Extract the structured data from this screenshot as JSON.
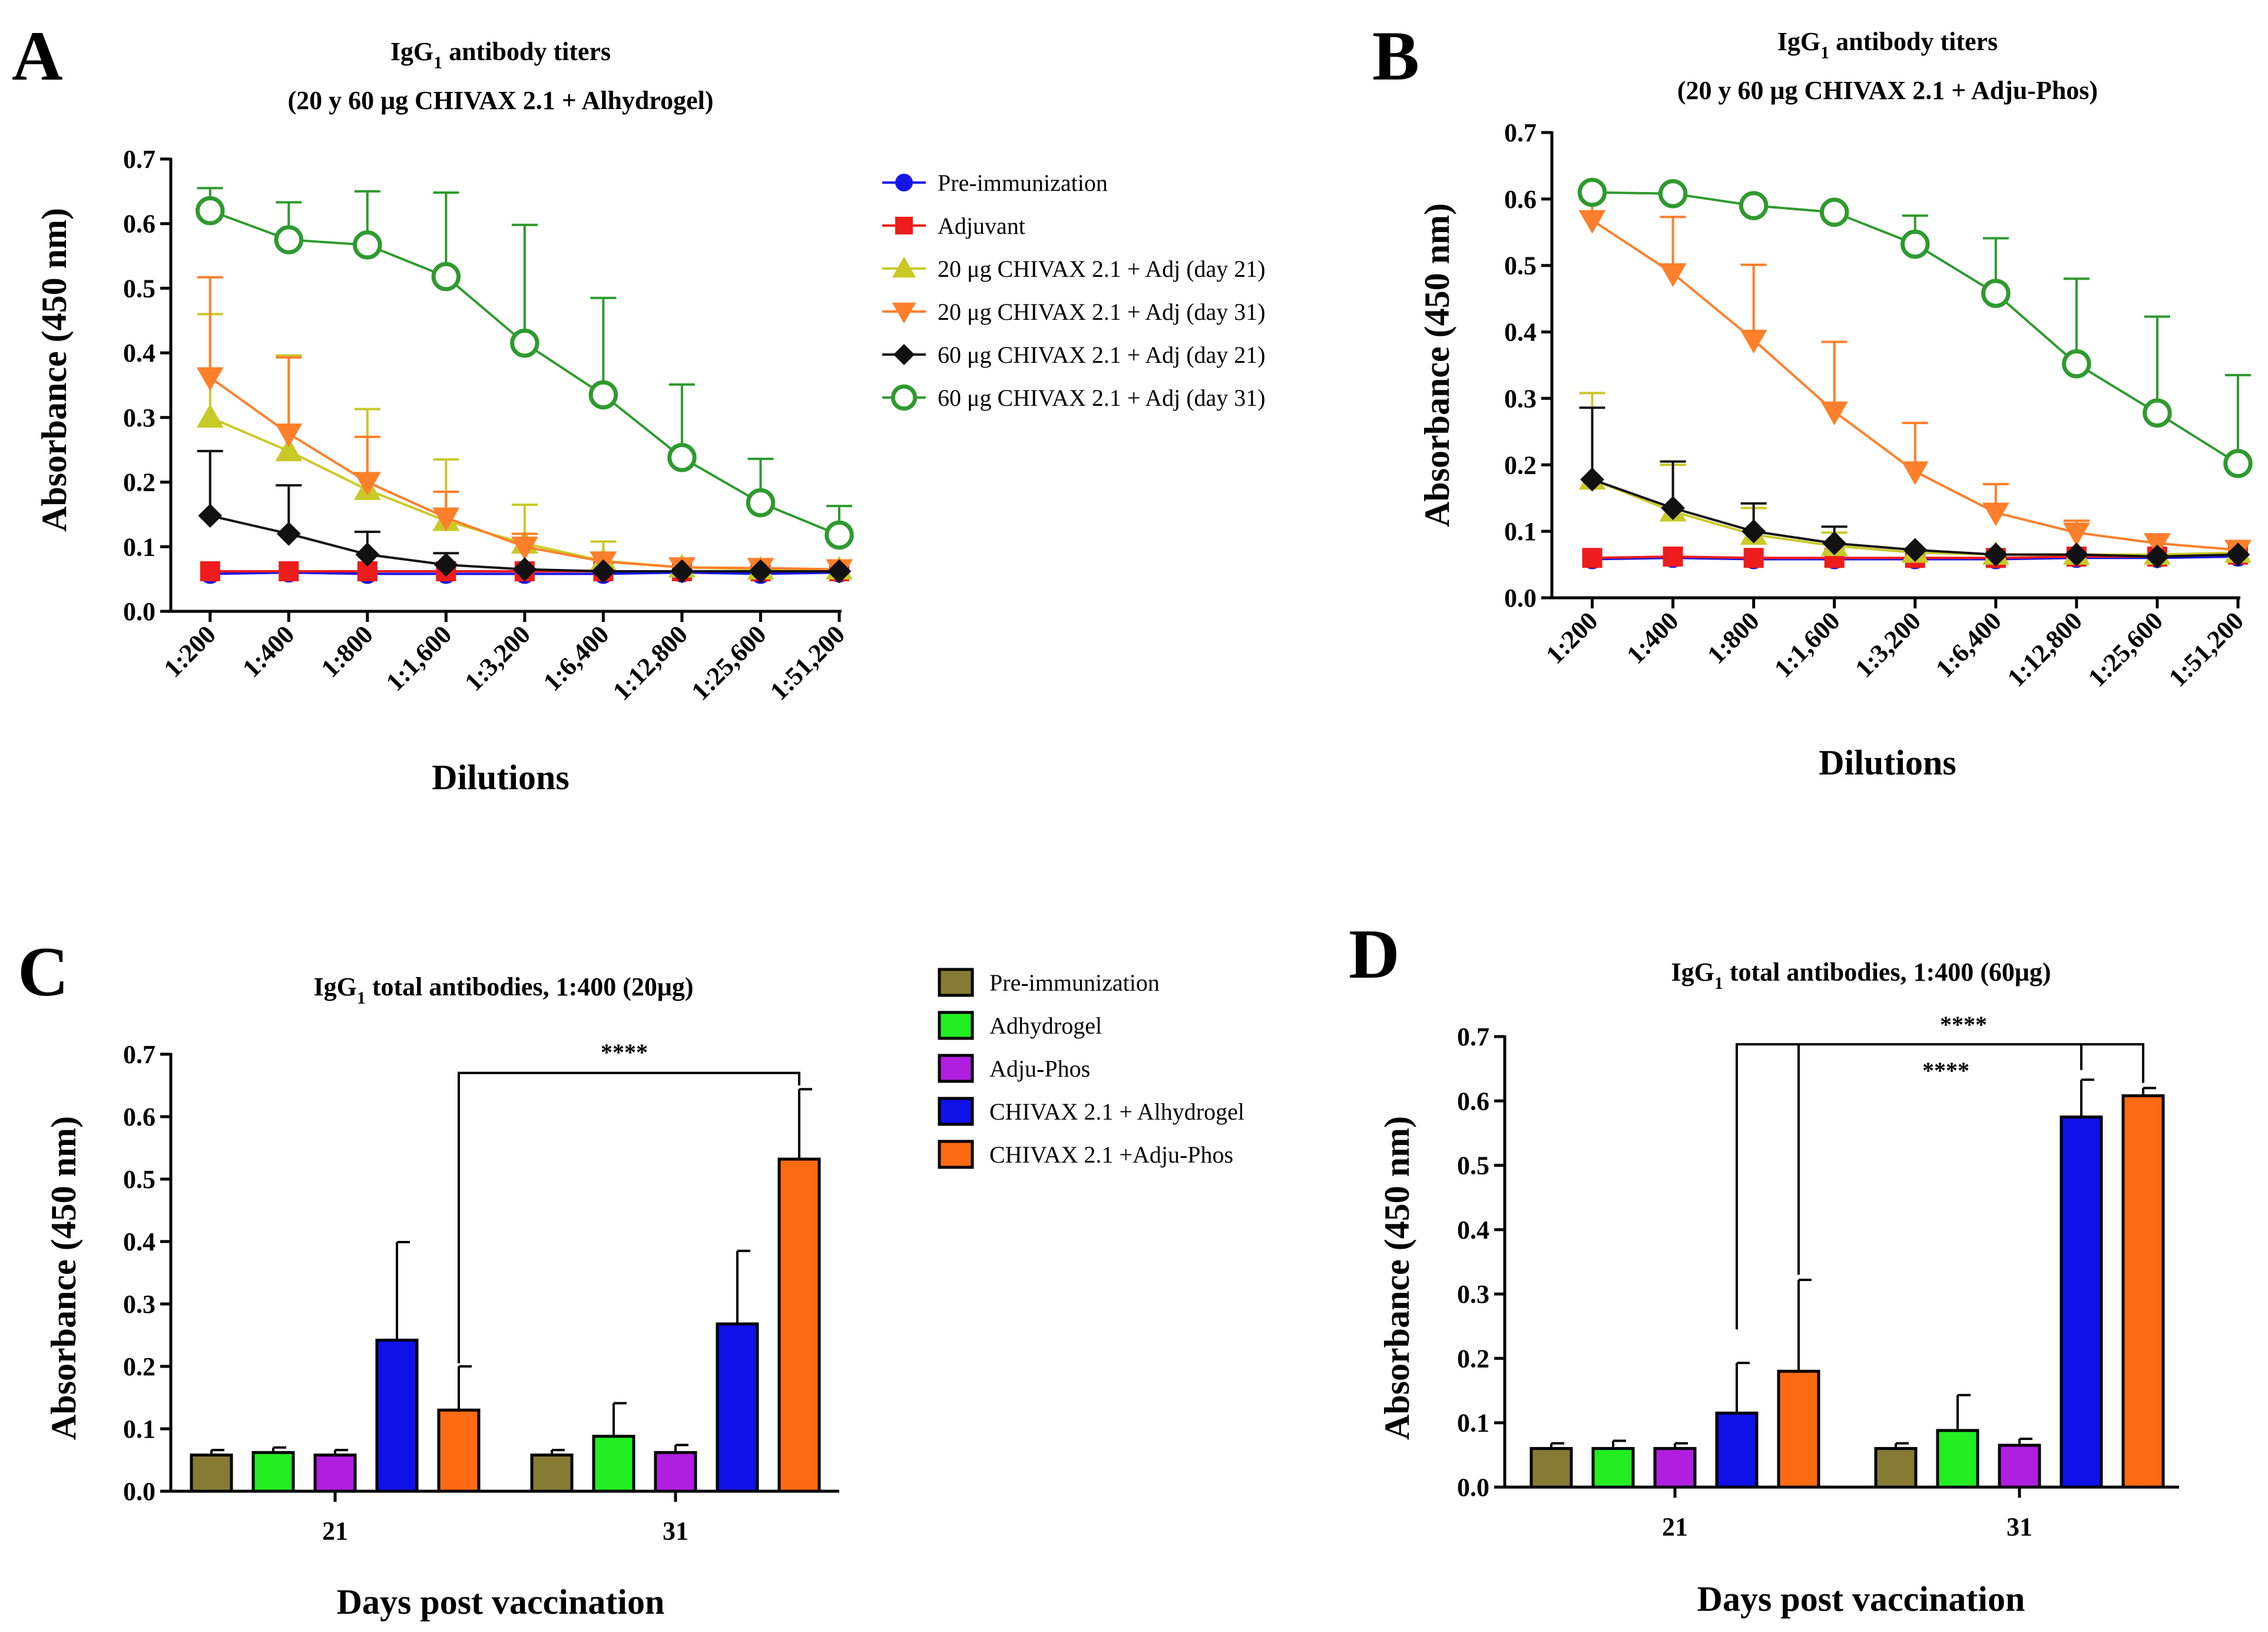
{
  "panel_letters": [
    "A",
    "B",
    "C",
    "D"
  ],
  "legend_line": {
    "entries": [
      "Pre-immunization",
      "Adjuvant",
      "20 μg CHIVAX 2.1 + Adj (day 21)",
      "20 μg CHIVAX 2.1 + Adj (day 31)",
      "60 μg CHIVAX 2.1 + Adj (day 21)",
      "60 μg CHIVAX 2.1 + Adj (day 31)"
    ]
  },
  "legend_bar": {
    "entries": [
      "Pre-immunization",
      "Adhydrogel",
      "Adju-Phos",
      "CHIVAX 2.1 + Alhydrogel",
      "CHIVAX 2.1 +Adju-Phos"
    ]
  },
  "chart_data": [
    {
      "type": "line",
      "panel": "A",
      "title_line1_pre": "IgG",
      "title_line1_sub": "1",
      "title_line1_post": " antibody titers",
      "title_line2": "(20 y 60 μg CHIVAX 2.1 + Alhydrogel)",
      "xlabel": "Dilutions",
      "ylabel": "Absorbance (450 nm)",
      "ylim": [
        0,
        0.7
      ],
      "yticks": [
        "0.0",
        "0.1",
        "0.2",
        "0.3",
        "0.4",
        "0.5",
        "0.6",
        "0.7"
      ],
      "categories": [
        "1:200",
        "1:400",
        "1:800",
        "1:1,600",
        "1:3,200",
        "1:6,400",
        "1:12,800",
        "1:25,600",
        "1:51,200"
      ],
      "legend": "right",
      "series": [
        {
          "name": "Pre-immunization",
          "color": "#1515e6",
          "marker": "circle",
          "values": [
            0.058,
            0.06,
            0.058,
            0.058,
            0.058,
            0.058,
            0.06,
            0.058,
            0.06
          ],
          "errors": [
            0.008,
            0.008,
            0.008,
            0.008,
            0.008,
            0.008,
            0.008,
            0.008,
            0.008
          ]
        },
        {
          "name": "Adjuvant",
          "color": "#ee1c1c",
          "marker": "square",
          "values": [
            0.062,
            0.062,
            0.062,
            0.062,
            0.062,
            0.062,
            0.062,
            0.062,
            0.062
          ],
          "errors": [
            0.008,
            0.008,
            0.008,
            0.008,
            0.008,
            0.008,
            0.008,
            0.008,
            0.008
          ]
        },
        {
          "name": "20 μg CHIVAX 2.1 + Adj (day 21)",
          "color": "#c9c928",
          "marker": "triangle",
          "values": [
            0.3,
            0.248,
            0.188,
            0.14,
            0.105,
            0.078,
            0.068,
            0.065,
            0.065
          ],
          "errors": [
            0.16,
            0.148,
            0.125,
            0.095,
            0.06,
            0.03,
            0.012,
            0.008,
            0.008
          ]
        },
        {
          "name": "20 μg CHIVAX 2.1 + Adj (day 31)",
          "color": "#ff7f2a",
          "marker": "triangle-down",
          "values": [
            0.362,
            0.275,
            0.2,
            0.145,
            0.1,
            0.077,
            0.068,
            0.067,
            0.065
          ],
          "errors": [
            0.155,
            0.118,
            0.07,
            0.04,
            0.02,
            0.012,
            0.008,
            0.008,
            0.008
          ]
        },
        {
          "name": "60 μg CHIVAX 2.1 + Adj (day 21)",
          "color": "#111111",
          "marker": "diamond",
          "values": [
            0.148,
            0.12,
            0.088,
            0.072,
            0.065,
            0.062,
            0.062,
            0.062,
            0.062
          ],
          "errors": [
            0.1,
            0.075,
            0.035,
            0.018,
            0.012,
            0.01,
            0.008,
            0.008,
            0.008
          ]
        },
        {
          "name": "60 μg CHIVAX 2.1 + Adj (day 31)",
          "color": "#2e9a2e",
          "marker": "open-circle",
          "values": [
            0.62,
            0.575,
            0.567,
            0.518,
            0.415,
            0.335,
            0.238,
            0.168,
            0.118
          ],
          "errors": [
            0.035,
            0.058,
            0.083,
            0.13,
            0.183,
            0.15,
            0.113,
            0.068,
            0.045
          ]
        }
      ]
    },
    {
      "type": "line",
      "panel": "B",
      "title_line1_pre": "IgG",
      "title_line1_sub": "1",
      "title_line1_post": " antibody titers",
      "title_line2": "(20 y 60 μg CHIVAX 2.1 + Adju-Phos)",
      "xlabel": "Dilutions",
      "ylabel": "Absorbance (450 nm)",
      "ylim": [
        0,
        0.7
      ],
      "yticks": [
        "0.0",
        "0.1",
        "0.2",
        "0.3",
        "0.4",
        "0.5",
        "0.6",
        "0.7"
      ],
      "categories": [
        "1:200",
        "1:400",
        "1:800",
        "1:1,600",
        "1:3,200",
        "1:6,400",
        "1:12,800",
        "1:25,600",
        "1:51,200"
      ],
      "series": [
        {
          "name": "Pre-immunization",
          "color": "#1515e6",
          "marker": "circle",
          "values": [
            0.058,
            0.06,
            0.058,
            0.058,
            0.058,
            0.058,
            0.06,
            0.06,
            0.062
          ],
          "errors": [
            0.008,
            0.008,
            0.008,
            0.008,
            0.008,
            0.008,
            0.008,
            0.008,
            0.008
          ]
        },
        {
          "name": "Adjuvant",
          "color": "#ee1c1c",
          "marker": "square",
          "values": [
            0.06,
            0.062,
            0.06,
            0.06,
            0.06,
            0.06,
            0.062,
            0.062,
            0.065
          ],
          "errors": [
            0.008,
            0.008,
            0.008,
            0.008,
            0.008,
            0.008,
            0.008,
            0.008,
            0.008
          ]
        },
        {
          "name": "20 μg CHIVAX 2.1 + Adj (day 21)",
          "color": "#c9c928",
          "marker": "triangle",
          "values": [
            0.178,
            0.13,
            0.095,
            0.078,
            0.068,
            0.065,
            0.065,
            0.065,
            0.068
          ],
          "errors": [
            0.13,
            0.07,
            0.04,
            0.02,
            0.012,
            0.008,
            0.008,
            0.008,
            0.008
          ]
        },
        {
          "name": "20 μg CHIVAX 2.1 + Adj (day 31)",
          "color": "#ff7f2a",
          "marker": "triangle-down",
          "values": [
            0.568,
            0.488,
            0.388,
            0.28,
            0.19,
            0.128,
            0.098,
            0.082,
            0.072
          ],
          "errors": [
            0.032,
            0.085,
            0.113,
            0.105,
            0.073,
            0.043,
            0.018,
            0.01,
            0.008
          ]
        },
        {
          "name": "60 μg CHIVAX 2.1 + Adj (day 21)",
          "color": "#111111",
          "marker": "diamond",
          "values": [
            0.178,
            0.135,
            0.1,
            0.082,
            0.072,
            0.065,
            0.065,
            0.062,
            0.065
          ],
          "errors": [
            0.108,
            0.07,
            0.042,
            0.025,
            0.012,
            0.008,
            0.008,
            0.008,
            0.008
          ]
        },
        {
          "name": "60 μg CHIVAX 2.1 + Adj (day 31)",
          "color": "#2e9a2e",
          "marker": "open-circle",
          "values": [
            0.61,
            0.608,
            0.59,
            0.58,
            0.532,
            0.458,
            0.352,
            0.278,
            0.202
          ],
          "errors": [
            0.008,
            0.008,
            0.008,
            0.008,
            0.043,
            0.083,
            0.128,
            0.145,
            0.133
          ]
        }
      ]
    },
    {
      "type": "bar",
      "panel": "C",
      "title_pre": "IgG",
      "title_sub": "1",
      "title_post": " total antibodies, 1:400  (20μg)",
      "xlabel": "Days post vaccination",
      "ylabel": "Absorbance (450 nm)",
      "ylim": [
        0,
        0.7
      ],
      "yticks": [
        "0.0",
        "0.1",
        "0.2",
        "0.3",
        "0.4",
        "0.5",
        "0.6",
        "0.7"
      ],
      "categories": [
        "21",
        "31"
      ],
      "legend": "right",
      "series": [
        {
          "name": "Pre-immunization",
          "color": "#857b35",
          "values": [
            0.058,
            0.058
          ],
          "errors": [
            0.008,
            0.008
          ]
        },
        {
          "name": "Adhydrogel",
          "color": "#22ee22",
          "values": [
            0.062,
            0.088
          ],
          "errors": [
            0.008,
            0.053
          ]
        },
        {
          "name": "Adju-Phos",
          "color": "#b01ee0",
          "values": [
            0.058,
            0.062
          ],
          "errors": [
            0.008,
            0.012
          ]
        },
        {
          "name": "CHIVAX 2.1 + Alhydrogel",
          "color": "#1010e8",
          "values": [
            0.242,
            0.268
          ],
          "errors": [
            0.157,
            0.117
          ]
        },
        {
          "name": "CHIVAX 2.1 +Adju-Phos",
          "color": "#ff6a12",
          "values": [
            0.13,
            0.532
          ],
          "errors": [
            0.07,
            0.112
          ]
        }
      ],
      "significance": [
        {
          "label": "****",
          "from": {
            "group": 0,
            "series": 4
          },
          "to": {
            "group": 1,
            "series": 4
          },
          "y": 0.67
        }
      ]
    },
    {
      "type": "bar",
      "panel": "D",
      "title_pre": "IgG",
      "title_sub": "1",
      "title_post": " total antibodies, 1:400  (60μg)",
      "xlabel": "Days post vaccination",
      "ylabel": "Absorbance (450 nm)",
      "ylim": [
        0,
        0.7
      ],
      "yticks": [
        "0.0",
        "0.1",
        "0.2",
        "0.3",
        "0.4",
        "0.5",
        "0.6",
        "0.7"
      ],
      "categories": [
        "21",
        "31"
      ],
      "series": [
        {
          "name": "Pre-immunization",
          "color": "#857b35",
          "values": [
            0.06,
            0.06
          ],
          "errors": [
            0.008,
            0.008
          ]
        },
        {
          "name": "Adhydrogel",
          "color": "#22ee22",
          "values": [
            0.06,
            0.088
          ],
          "errors": [
            0.012,
            0.055
          ]
        },
        {
          "name": "Adju-Phos",
          "color": "#b01ee0",
          "values": [
            0.06,
            0.065
          ],
          "errors": [
            0.008,
            0.01
          ]
        },
        {
          "name": "CHIVAX 2.1 + Alhydrogel",
          "color": "#1010e8",
          "values": [
            0.115,
            0.575
          ],
          "errors": [
            0.078,
            0.058
          ]
        },
        {
          "name": "CHIVAX 2.1 +Adju-Phos",
          "color": "#ff6a12",
          "values": [
            0.18,
            0.608
          ],
          "errors": [
            0.142,
            0.012
          ]
        }
      ],
      "significance": [
        {
          "label": "****",
          "from": {
            "group": 0,
            "series": 3
          },
          "to": {
            "group": 1,
            "series": 4
          },
          "y": 0.688,
          "label_pos": "top"
        },
        {
          "label": "****",
          "from": {
            "group": 0,
            "series": 4
          },
          "to": {
            "group": 1,
            "series": 3
          },
          "y": 0.688,
          "label_pos": "left"
        }
      ]
    }
  ]
}
